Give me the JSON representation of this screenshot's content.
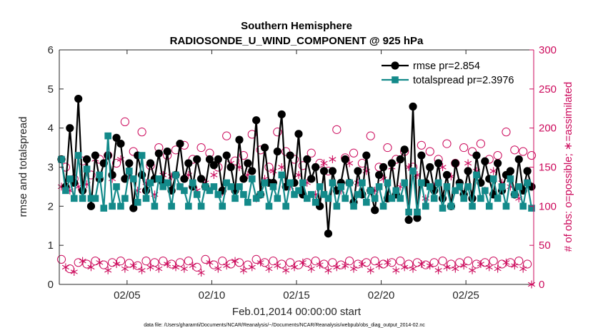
{
  "chart_data": {
    "type": "line",
    "title": "Southern Hemisphere",
    "subtitle": "RADIOSONDE_U_WIND_COMPONENT @ 925 hPa",
    "xlabel": "Feb.01,2014 00:00:00 start",
    "ylabel": "rmse and totalspread",
    "ylabel_right": "# of obs: o=possible; ∗=assimilated",
    "footnote": "data file: /Users/gharamti/Documents/NCAR/Reanalysis/~/Documents/NCAR/Reanalysis/webpub/obs_diag_output_2014-02.nc",
    "xlim": [
      1,
      29
    ],
    "ylim": [
      0,
      6
    ],
    "ylim_right": [
      0,
      300
    ],
    "x_ticks": [
      5,
      10,
      15,
      20,
      25
    ],
    "x_tick_labels": [
      "02/05",
      "02/10",
      "02/15",
      "02/20",
      "02/25"
    ],
    "y_ticks": [
      0,
      1,
      2,
      3,
      4,
      5,
      6
    ],
    "y_tick_labels": [
      "0",
      "1",
      "2",
      "3",
      "4",
      "5",
      "6"
    ],
    "y_ticks_right": [
      0,
      50,
      100,
      150,
      200,
      250,
      300
    ],
    "y_tick_labels_right": [
      "0",
      "50",
      "100",
      "150",
      "200",
      "250",
      "300"
    ],
    "grid": false,
    "legend_position": "top-right",
    "colors": {
      "rmse": "#000000",
      "spread": "#138a8a",
      "obs": "#cc0a5c",
      "axis": "#262626"
    },
    "x": [
      1.125,
      1.375,
      1.625,
      1.875,
      2.125,
      2.375,
      2.625,
      2.875,
      3.125,
      3.375,
      3.625,
      3.875,
      4.125,
      4.375,
      4.625,
      4.875,
      5.125,
      5.375,
      5.625,
      5.875,
      6.125,
      6.375,
      6.625,
      6.875,
      7.125,
      7.375,
      7.625,
      7.875,
      8.125,
      8.375,
      8.625,
      8.875,
      9.125,
      9.375,
      9.625,
      9.875,
      10.125,
      10.375,
      10.625,
      10.875,
      11.125,
      11.375,
      11.625,
      11.875,
      12.125,
      12.375,
      12.625,
      12.875,
      13.125,
      13.375,
      13.625,
      13.875,
      14.125,
      14.375,
      14.625,
      14.875,
      15.125,
      15.375,
      15.625,
      15.875,
      16.125,
      16.375,
      16.625,
      16.875,
      17.125,
      17.375,
      17.625,
      17.875,
      18.125,
      18.375,
      18.625,
      18.875,
      19.125,
      19.375,
      19.625,
      19.875,
      20.125,
      20.375,
      20.625,
      20.875,
      21.125,
      21.375,
      21.625,
      21.875,
      22.125,
      22.375,
      22.625,
      22.875,
      23.125,
      23.375,
      23.625,
      23.875,
      24.125,
      24.375,
      24.625,
      24.875,
      25.125,
      25.375,
      25.625,
      25.875,
      26.125,
      26.375,
      26.625,
      26.875,
      27.125,
      27.375,
      27.625,
      27.875,
      28.125,
      28.375,
      28.625,
      28.875
    ],
    "series": [
      {
        "name": "rmse pr=2.854",
        "axis": "left",
        "marker": "filled-circle",
        "values": [
          3.2,
          2.5,
          4.0,
          2.6,
          4.75,
          2.4,
          3.2,
          2.0,
          3.3,
          2.7,
          3.1,
          3.3,
          2.8,
          3.75,
          3.6,
          2.7,
          3.1,
          1.95,
          3.3,
          2.8,
          2.4,
          3.1,
          2.7,
          3.35,
          2.6,
          3.4,
          2.4,
          2.8,
          3.6,
          2.7,
          3.1,
          2.5,
          3.2,
          2.7,
          2.5,
          3.2,
          3.05,
          3.2,
          2.4,
          3.3,
          3.0,
          2.4,
          3.7,
          2.7,
          3.1,
          2.9,
          4.2,
          2.3,
          3.5,
          2.6,
          2.6,
          3.4,
          4.35,
          2.5,
          3.3,
          2.6,
          3.85,
          2.3,
          3.2,
          2.7,
          3.0,
          2.0,
          2.9,
          1.3,
          2.9,
          2.4,
          2.6,
          3.2,
          2.6,
          2.1,
          2.9,
          2.3,
          3.3,
          2.4,
          1.9,
          2.8,
          3.0,
          2.2,
          3.1,
          2.3,
          3.2,
          3.45,
          1.65,
          4.55,
          1.7,
          3.3,
          2.6,
          3.0,
          2.4,
          3.1,
          2.2,
          2.8,
          2.0,
          3.1,
          2.6,
          2.3,
          2.9,
          2.2,
          3.3,
          2.6,
          3.15,
          2.7,
          2.3,
          3.1,
          2.4,
          2.8,
          2.9,
          2.3,
          3.2,
          2.4,
          2.9,
          2.5
        ]
      },
      {
        "name": "totalspread pr=2.3976",
        "axis": "left",
        "marker": "filled-square",
        "values": [
          3.2,
          2.4,
          2.7,
          2.2,
          3.3,
          2.2,
          2.95,
          2.2,
          2.2,
          2.8,
          1.95,
          3.8,
          2.0,
          2.5,
          2.0,
          2.2,
          2.9,
          2.7,
          2.1,
          3.3,
          2.2,
          2.6,
          2.0,
          2.7,
          2.5,
          2.6,
          2.0,
          2.8,
          2.5,
          2.4,
          2.0,
          2.6,
          2.3,
          2.0,
          2.5,
          2.4,
          2.5,
          2.3,
          2.0,
          2.6,
          2.5,
          2.2,
          2.5,
          2.3,
          2.1,
          2.7,
          2.2,
          2.3,
          2.6,
          2.0,
          2.5,
          2.2,
          2.8,
          2.0,
          2.6,
          2.3,
          2.4,
          2.6,
          2.2,
          2.3,
          2.1,
          2.5,
          2.3,
          2.2,
          2.6,
          2.0,
          2.5,
          2.2,
          2.6,
          2.0,
          2.3,
          2.6,
          2.1,
          2.4,
          2.2,
          2.5,
          2.0,
          2.6,
          2.2,
          2.4,
          2.2,
          2.6,
          1.85,
          2.9,
          1.85,
          2.6,
          2.0,
          2.5,
          2.2,
          2.6,
          1.95,
          2.5,
          2.0,
          2.4,
          2.5,
          2.2,
          2.5,
          2.0,
          2.8,
          2.2,
          2.4,
          2.0,
          2.7,
          2.2,
          2.5,
          2.0,
          2.7,
          2.3,
          2.5,
          2.0,
          2.6,
          1.95
        ]
      },
      {
        "name": "possible",
        "axis": "right",
        "marker": "open-circle",
        "values": [
          32,
          150,
          20,
          135,
          28,
          158,
          26,
          140,
          30,
          160,
          25,
          165,
          28,
          155,
          30,
          208,
          27,
          170,
          24,
          195,
          30,
          152,
          28,
          175,
          30,
          165,
          26,
          172,
          28,
          178,
          30,
          160,
          22,
          175,
          32,
          168,
          25,
          150,
          30,
          190,
          26,
          158,
          28,
          165,
          25,
          192,
          32,
          172,
          28,
          150,
          30,
          195,
          26,
          170,
          28,
          160,
          25,
          152,
          28,
          168,
          30,
          155,
          26,
          145,
          28,
          198,
          25,
          162,
          30,
          168,
          26,
          155,
          28,
          190,
          30,
          150,
          26,
          175,
          28,
          160,
          30,
          170,
          26,
          150,
          28,
          178,
          25,
          170,
          28,
          160,
          30,
          180,
          26,
          155,
          28,
          175,
          30,
          170,
          26,
          180,
          28,
          160,
          30,
          165,
          26,
          195,
          28,
          172,
          30,
          170,
          26,
          165
        ]
      },
      {
        "name": "assimilated",
        "axis": "right",
        "marker": "asterisk",
        "values": [
          125,
          22,
          120,
          16,
          125,
          30,
          128,
          22,
          160,
          28,
          155,
          18,
          135,
          26,
          160,
          20,
          140,
          24,
          120,
          18,
          130,
          22,
          115,
          20,
          140,
          26,
          138,
          22,
          125,
          20,
          140,
          24,
          120,
          15,
          130,
          28,
          140,
          20,
          118,
          24,
          155,
          30,
          150,
          18,
          140,
          22,
          110,
          28,
          135,
          20,
          145,
          24,
          150,
          18,
          125,
          22,
          140,
          28,
          130,
          20,
          115,
          25,
          155,
          18,
          160,
          22,
          120,
          24,
          155,
          20,
          130,
          26,
          145,
          18,
          120,
          24,
          135,
          28,
          150,
          18,
          125,
          22,
          150,
          20,
          140,
          26,
          110,
          24,
          125,
          18,
          150,
          22,
          138,
          20,
          125,
          24,
          155,
          18,
          145,
          26,
          120,
          22,
          145,
          20,
          130,
          28,
          125,
          24,
          110,
          20,
          130,
          0
        ]
      }
    ]
  }
}
